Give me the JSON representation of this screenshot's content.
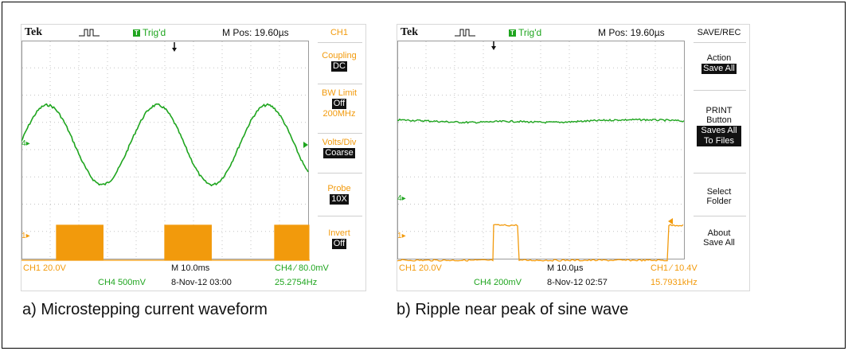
{
  "scope_a": {
    "brand": "Tek",
    "trigger_state": "Trig'd",
    "trig_box": "T",
    "mpos": "M Pos: 19.60µs",
    "menu": {
      "title": "CH1",
      "items": [
        {
          "label": "Coupling",
          "value": "DC"
        },
        {
          "label": "BW Limit",
          "value": "Off",
          "extra": "200MHz"
        },
        {
          "label": "Volts/Div",
          "value": "Coarse"
        },
        {
          "label": "Probe",
          "value": "10X"
        },
        {
          "label": "Invert",
          "value": "Off"
        }
      ]
    },
    "footer": {
      "ch1": "CH1  20.0V",
      "time": "M 10.0ms",
      "ch4_trig": "CH4 ∕ 80.0mV",
      "ch4": "CH4  500mV",
      "date": "8-Nov-12 03:00",
      "freq": "25.2754Hz"
    },
    "markers": {
      "ch4": "4",
      "ch1": "1"
    }
  },
  "scope_b": {
    "brand": "Tek",
    "trigger_state": "Trig'd",
    "trig_box": "T",
    "mpos": "M Pos: 19.60µs",
    "menu": {
      "title": "SAVE/REC",
      "items": [
        {
          "label1": "Action",
          "value": "Save All"
        },
        {
          "label1": "PRINT",
          "label2": "Button",
          "value1": "Saves All",
          "value2": "To Files"
        },
        {
          "label1": "Select",
          "label2": "Folder"
        },
        {
          "label1": "About",
          "label2": "Save All"
        }
      ]
    },
    "footer": {
      "ch1": "CH1  20.0V",
      "time": "M 10.0µs",
      "ch1_trig": "CH1 ∕ 10.4V",
      "ch4": "CH4  200mV",
      "date": "8-Nov-12 02:57",
      "freq": "15.7931kHz"
    },
    "markers": {
      "ch4": "4",
      "ch1": "1"
    }
  },
  "captions": {
    "a": "a)  Microstepping current waveform",
    "b": "b) Ripple near peak of sine wave"
  },
  "colors": {
    "trace_green": "#1fa51f",
    "trace_orange": "#f29a0c",
    "grid": "#bfbfbf"
  }
}
